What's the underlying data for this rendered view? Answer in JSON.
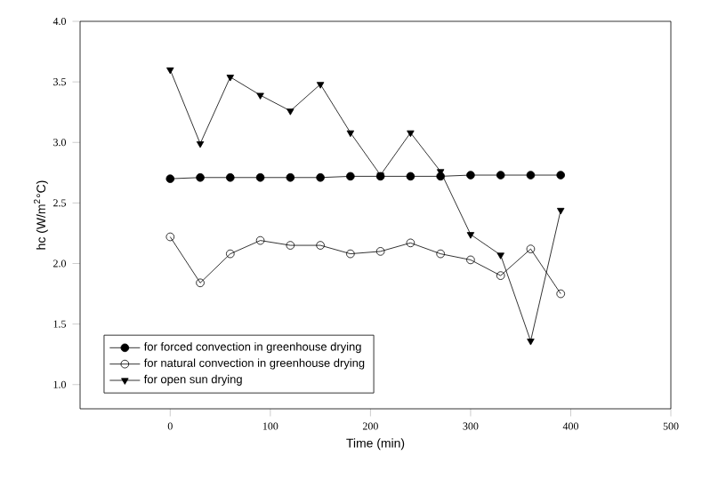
{
  "chart_data": {
    "type": "line",
    "xlabel": "Time (min)",
    "ylabel": "hc (W/m$^{2}$°C)",
    "x": [
      0,
      30,
      60,
      90,
      120,
      150,
      180,
      210,
      240,
      270,
      300,
      330,
      360,
      390
    ],
    "series": [
      {
        "name": "for forced convection in greenhouse drying",
        "color": "#000000",
        "marker": "circle",
        "values": [
          2.7,
          2.71,
          2.71,
          2.71,
          2.71,
          2.71,
          2.72,
          2.72,
          2.72,
          2.72,
          2.73,
          2.73,
          2.73,
          2.73
        ]
      },
      {
        "name": "for natural convection in greenhouse drying",
        "color": "#000000",
        "marker": "open circle",
        "values": [
          2.22,
          1.84,
          2.08,
          2.19,
          2.15,
          2.15,
          2.08,
          2.1,
          2.17,
          2.08,
          2.03,
          1.9,
          2.12,
          1.75
        ]
      },
      {
        "name": "for open sun drying",
        "color": "#000000",
        "marker": "triangle down",
        "values": [
          3.6,
          2.99,
          3.54,
          3.39,
          3.26,
          3.48,
          3.08,
          2.73,
          3.08,
          2.76,
          2.24,
          2.07,
          1.36,
          2.44
        ]
      }
    ],
    "xlim": [
      -90,
      500
    ],
    "xticks": [
      0,
      100,
      200,
      300,
      400,
      500
    ],
    "ylim": [
      0.8,
      4.0
    ],
    "yticks": [
      {
        "value": 1.0,
        "label": "1.0"
      },
      {
        "value": 1.5,
        "label": "1.5"
      },
      {
        "value": 2.0,
        "label": "2.0"
      },
      {
        "value": 2.5,
        "label": "2.5"
      },
      {
        "value": 3.0,
        "label": "3.0"
      },
      {
        "value": 3.5,
        "label": "3.5"
      },
      {
        "value": 4.0,
        "label": "4.0"
      }
    ],
    "legend": "bottom left",
    "grid": false,
    "line_style": "solid"
  }
}
